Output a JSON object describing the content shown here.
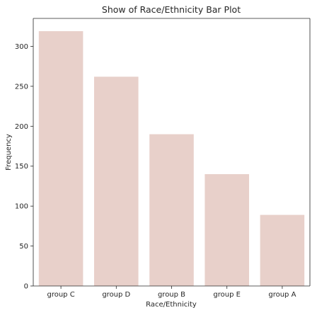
{
  "chart_data": {
    "type": "bar",
    "title": "Show of Race/Ethnicity Bar Plot",
    "xlabel": "Race/Ethnicity",
    "ylabel": "Frequency",
    "categories": [
      "group C",
      "group D",
      "group B",
      "group E",
      "group A"
    ],
    "values": [
      319,
      262,
      190,
      140,
      89
    ],
    "ylim": [
      0,
      335
    ],
    "yticks": [
      0,
      50,
      100,
      150,
      200,
      250,
      300
    ],
    "grid": false,
    "bar_color": "#e8d0ca",
    "axis_color": "#262626"
  }
}
